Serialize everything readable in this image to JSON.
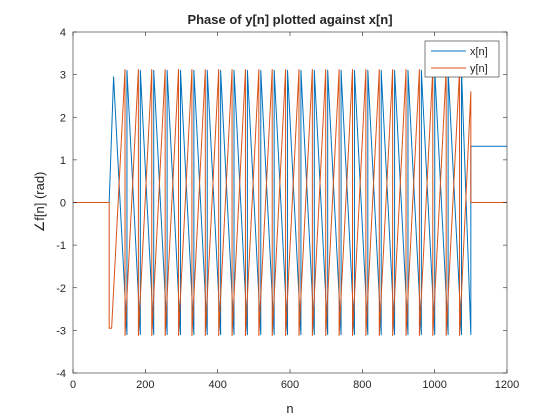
{
  "chart_data": {
    "type": "line",
    "title": "Phase of y[n] plotted against x[n]",
    "xlabel": "n",
    "ylabel": "∠f[n] (rad)",
    "xlim": [
      0,
      1200
    ],
    "ylim": [
      -4,
      4
    ],
    "xticks": [
      0,
      200,
      400,
      600,
      800,
      1000,
      1200
    ],
    "yticks": [
      -4,
      -3,
      -2,
      -1,
      0,
      1,
      2,
      3,
      4
    ],
    "grid": false,
    "legend_position": "top-right",
    "series": [
      {
        "name": "x[n]",
        "color": "#0072BD",
        "x": [
          0,
          100,
          112.2,
          112.2,
          149.2,
          149.2,
          186.2,
          186.2,
          223.2,
          223.2,
          260.2,
          260.2,
          297.2,
          297.2,
          334.2,
          334.2,
          371.2,
          371.2,
          408.2,
          408.2,
          445.2,
          445.2,
          482.2,
          482.2,
          519.2,
          519.2,
          556.2,
          556.2,
          593.2,
          593.2,
          630.2,
          630.2,
          667.2,
          667.2,
          704.2,
          704.2,
          741.2,
          741.2,
          778.2,
          778.2,
          815.2,
          815.2,
          852.2,
          852.2,
          889.2,
          889.2,
          926.2,
          926.2,
          963.2,
          963.2,
          1000.2,
          1000.2,
          1037.2,
          1037.2,
          1074.2,
          1074.2,
          1100,
          1100,
          1200
        ],
        "y": [
          0,
          0,
          2.95,
          2.95,
          -3.1,
          3.1,
          -3.1,
          3.1,
          -3.1,
          3.1,
          -3.1,
          3.1,
          -3.1,
          3.1,
          -3.1,
          3.1,
          -3.1,
          3.1,
          -3.1,
          3.1,
          -3.1,
          3.1,
          -3.1,
          3.1,
          -3.1,
          3.1,
          -3.1,
          3.1,
          -3.1,
          3.1,
          -3.1,
          3.1,
          -3.1,
          3.1,
          -3.1,
          3.1,
          -3.1,
          3.1,
          -3.1,
          3.1,
          -3.1,
          3.1,
          -3.1,
          3.1,
          -3.1,
          3.1,
          -3.1,
          3.1,
          -3.1,
          3.1,
          -3.1,
          3.1,
          -3.1,
          3.1,
          -3.1,
          3.1,
          -3.1,
          1.32,
          1.32
        ]
      },
      {
        "name": "y[n]",
        "color": "#D95319",
        "x": [
          0,
          100,
          100,
          106.8,
          106.8,
          143.8,
          143.8,
          180.8,
          180.8,
          217.8,
          217.8,
          254.8,
          254.8,
          291.8,
          291.8,
          328.8,
          328.8,
          365.8,
          365.8,
          402.8,
          402.8,
          439.8,
          439.8,
          476.8,
          476.8,
          513.8,
          513.8,
          550.8,
          550.8,
          587.8,
          587.8,
          624.8,
          624.8,
          661.8,
          661.8,
          698.8,
          698.8,
          735.8,
          735.8,
          772.8,
          772.8,
          809.8,
          809.8,
          846.8,
          846.8,
          883.8,
          883.8,
          920.8,
          920.8,
          957.8,
          957.8,
          994.8,
          994.8,
          1031.8,
          1031.8,
          1068.8,
          1068.8,
          1100,
          1100,
          1200
        ],
        "y": [
          0,
          0,
          -2.95,
          -2.95,
          -2.95,
          3.12,
          -3.12,
          3.12,
          -3.12,
          3.12,
          -3.12,
          3.12,
          -3.12,
          3.12,
          -3.12,
          3.12,
          -3.12,
          3.12,
          -3.12,
          3.12,
          -3.12,
          3.12,
          -3.12,
          3.12,
          -3.12,
          3.12,
          -3.12,
          3.12,
          -3.12,
          3.12,
          -3.12,
          3.12,
          -3.12,
          3.12,
          -3.12,
          3.12,
          -3.12,
          3.12,
          -3.12,
          3.12,
          -3.12,
          3.12,
          -3.12,
          3.12,
          -3.12,
          3.12,
          -3.12,
          3.12,
          -3.12,
          3.12,
          -3.12,
          3.12,
          -3.12,
          3.12,
          -3.12,
          3.12,
          -3.12,
          2.6,
          0,
          0
        ]
      }
    ]
  }
}
